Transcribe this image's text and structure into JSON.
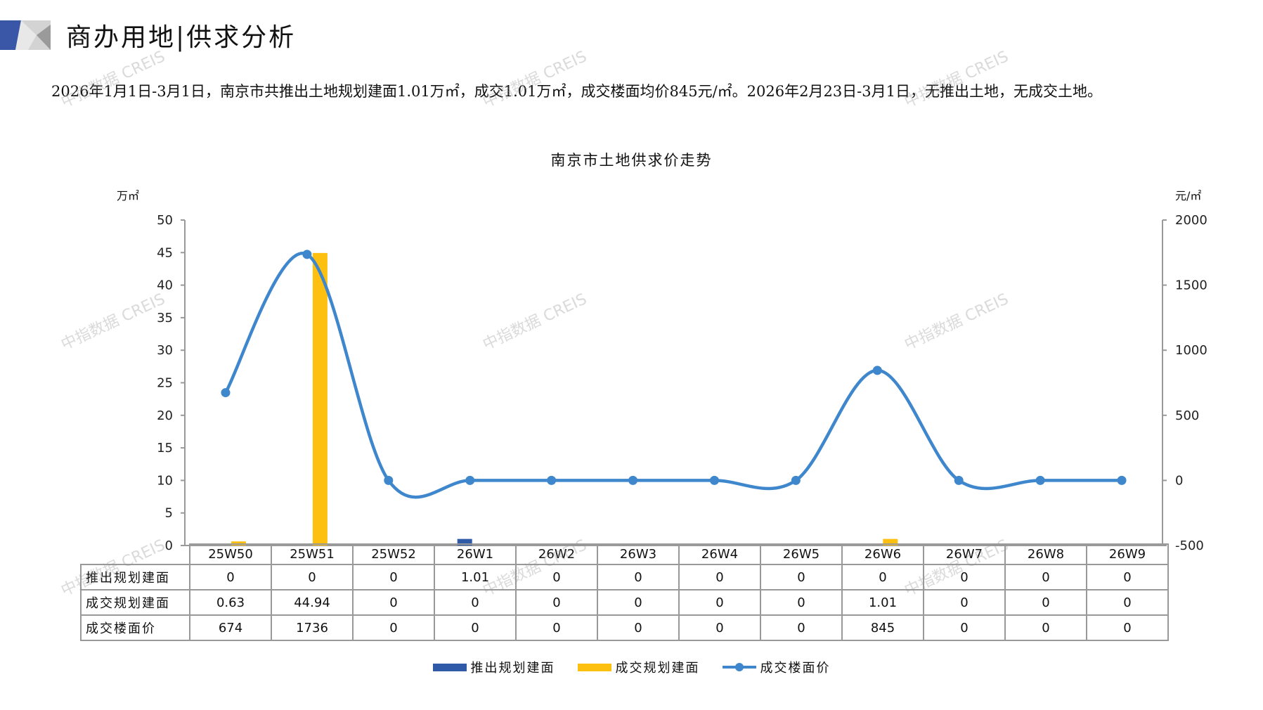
{
  "header": {
    "title": "商办用地|供求分析"
  },
  "summary": "2026年1月1日-3月1日，南京市共推出土地规划建面1.01万㎡，成交1.01万㎡，成交楼面均价845元/㎡。2026年2月23日-3月1日，无推出土地，无成交土地。",
  "watermark": "中指数据 CREIS",
  "colors": {
    "supply": "#2E5AA7",
    "deal": "#FDC010",
    "price": "#3F87CC",
    "logo_blue": "#3A56A6",
    "logo_gray": "#9A9A9A"
  },
  "chart_data": {
    "type": "bar+line",
    "title": "南京市土地供求价走势",
    "ylabel_left": "万㎡",
    "ylabel_right": "元/㎡",
    "ylim_left": [
      0,
      50
    ],
    "ylim_right": [
      -500,
      2000
    ],
    "yticks_left": [
      "0",
      "5",
      "10",
      "15",
      "20",
      "25",
      "30",
      "35",
      "40",
      "45",
      "50"
    ],
    "yticks_right": [
      "-500",
      "0",
      "500",
      "1000",
      "1500",
      "2000"
    ],
    "categories": [
      "25W50",
      "25W51",
      "25W52",
      "26W1",
      "26W2",
      "26W3",
      "26W4",
      "26W5",
      "26W6",
      "26W7",
      "26W8",
      "26W9"
    ],
    "series": [
      {
        "name": "推出规划建面",
        "type": "bar",
        "axis": "left",
        "values": [
          0,
          0,
          0,
          1.01,
          0,
          0,
          0,
          0,
          0,
          0,
          0,
          0
        ],
        "labels": [
          "0",
          "0",
          "0",
          "1.01",
          "0",
          "0",
          "0",
          "0",
          "0",
          "0",
          "0",
          "0"
        ]
      },
      {
        "name": "成交规划建面",
        "type": "bar",
        "axis": "left",
        "values": [
          0.63,
          44.94,
          0,
          0,
          0,
          0,
          0,
          0,
          1.01,
          0,
          0,
          0
        ],
        "labels": [
          "0.63",
          "44.94",
          "0",
          "0",
          "0",
          "0",
          "0",
          "0",
          "1.01",
          "0",
          "0",
          "0"
        ]
      },
      {
        "name": "成交楼面价",
        "type": "line",
        "smooth": true,
        "axis": "right",
        "values": [
          674,
          1736,
          0,
          0,
          0,
          0,
          0,
          0,
          845,
          0,
          0,
          0
        ],
        "labels": [
          "674",
          "1736",
          "0",
          "0",
          "0",
          "0",
          "0",
          "0",
          "845",
          "0",
          "0",
          "0"
        ]
      }
    ],
    "legend": "bottom",
    "grid": false
  }
}
